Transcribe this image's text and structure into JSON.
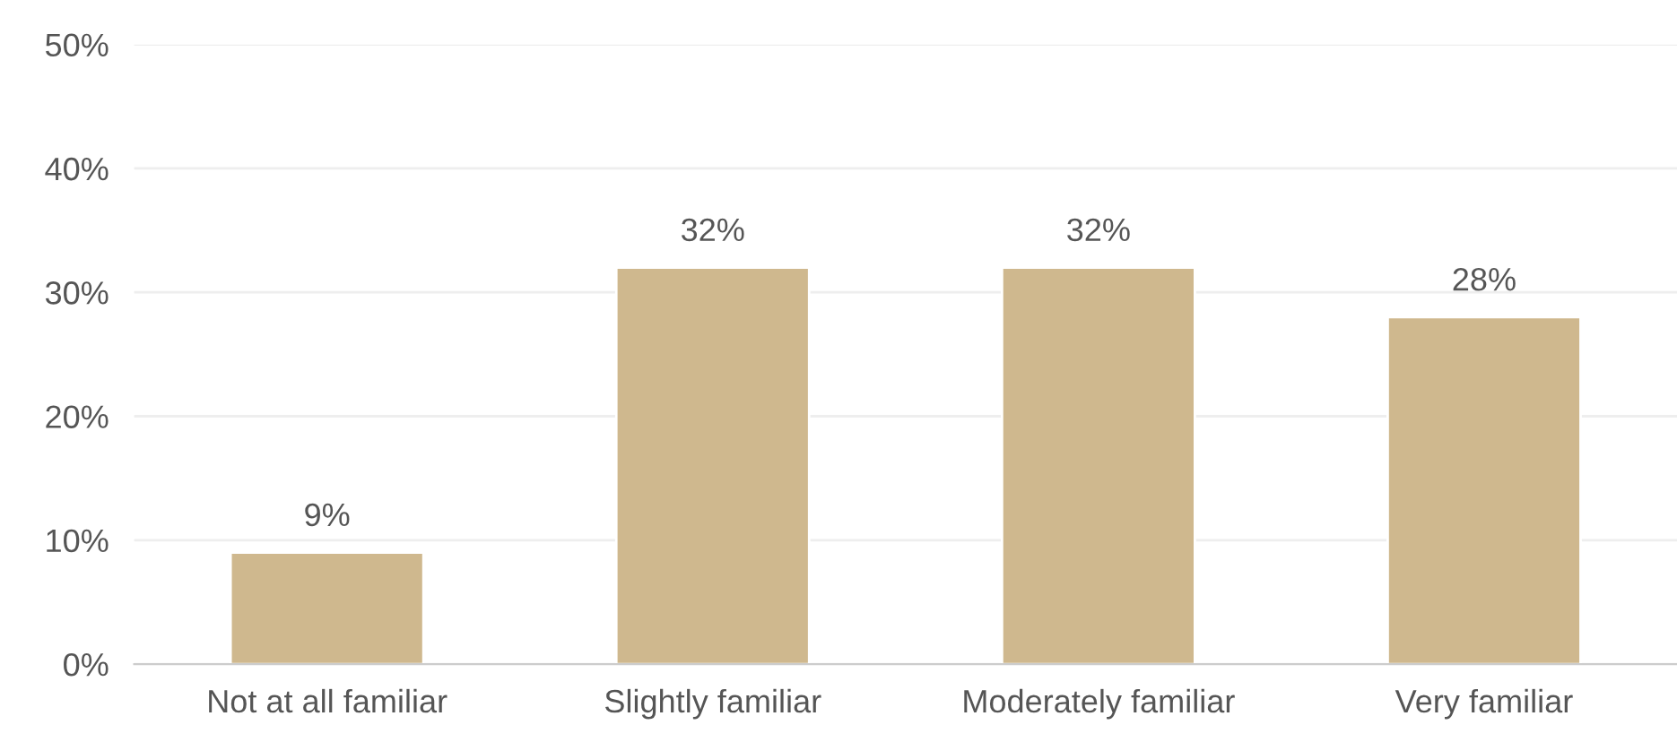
{
  "chart_data": {
    "type": "bar",
    "categories": [
      "Not at all familiar",
      "Slightly familiar",
      "Moderately familiar",
      "Very familiar"
    ],
    "values": [
      9,
      32,
      32,
      28
    ],
    "value_labels": [
      "9%",
      "32%",
      "32%",
      "28%"
    ],
    "color": "#cfb88e",
    "ylim": [
      0,
      50
    ],
    "yticks": [
      {
        "value": 0,
        "label": "0%"
      },
      {
        "value": 10,
        "label": "10%"
      },
      {
        "value": 20,
        "label": "20%"
      },
      {
        "value": 30,
        "label": "30%"
      },
      {
        "value": 40,
        "label": "40%"
      },
      {
        "value": 50,
        "label": "50%"
      }
    ],
    "grid": "y"
  }
}
